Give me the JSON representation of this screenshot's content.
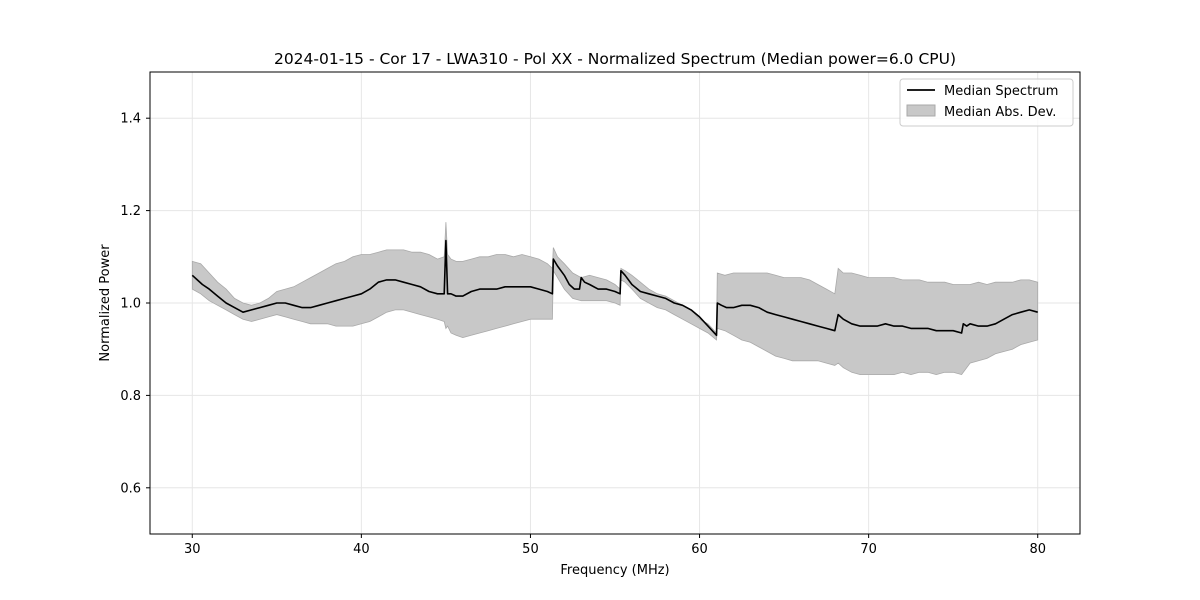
{
  "chart_data": {
    "type": "line",
    "title": "2024-01-15 - Cor 17 - LWA310 - Pol XX - Normalized Spectrum (Median power=6.0 CPU)",
    "xlabel": "Frequency (MHz)",
    "ylabel": "Normalized Power",
    "xlim": [
      27.5,
      82.5
    ],
    "ylim": [
      0.5,
      1.5
    ],
    "xticks": [
      30,
      40,
      50,
      60,
      70,
      80
    ],
    "yticks": [
      0.6,
      0.8,
      1.0,
      1.2,
      1.4
    ],
    "xtick_labels": [
      "30",
      "40",
      "50",
      "60",
      "70",
      "80"
    ],
    "ytick_labels": [
      "0.6",
      "0.8",
      "1.0",
      "1.2",
      "1.4"
    ],
    "grid": true,
    "legend_position": "top-right",
    "legend": [
      "Median Spectrum",
      "Median Abs. Dev."
    ],
    "colors": {
      "line": "#000000",
      "band_fill": "#c8c8c8",
      "band_edge": "#a9a9a9",
      "grid": "#e6e6e6"
    },
    "series": [
      {
        "name": "Median Spectrum",
        "x": [
          30.0,
          30.3,
          30.6,
          31.0,
          31.5,
          32.0,
          32.5,
          33.0,
          33.5,
          34.0,
          34.5,
          35.0,
          35.5,
          36.0,
          36.5,
          37.0,
          37.5,
          38.0,
          38.5,
          39.0,
          39.5,
          40.0,
          40.5,
          41.0,
          41.5,
          42.0,
          42.5,
          43.0,
          43.5,
          44.0,
          44.5,
          44.9,
          45.0,
          45.1,
          45.3,
          45.6,
          46.0,
          46.5,
          47.0,
          47.5,
          48.0,
          48.5,
          49.0,
          49.5,
          50.0,
          50.5,
          51.0,
          51.3,
          51.35,
          51.6,
          52.0,
          52.3,
          52.6,
          52.9,
          53.0,
          53.2,
          53.5,
          54.0,
          54.5,
          55.0,
          55.3,
          55.35,
          55.6,
          56.0,
          56.5,
          57.0,
          57.5,
          58.0,
          58.5,
          59.0,
          59.5,
          60.0,
          60.5,
          61.0,
          61.05,
          61.3,
          61.6,
          62.0,
          62.5,
          63.0,
          63.5,
          64.0,
          64.5,
          65.0,
          65.5,
          66.0,
          66.5,
          67.0,
          67.5,
          68.0,
          68.2,
          68.5,
          69.0,
          69.5,
          70.0,
          70.5,
          71.0,
          71.5,
          72.0,
          72.5,
          73.0,
          73.5,
          74.0,
          74.5,
          75.0,
          75.5,
          75.6,
          75.8,
          76.0,
          76.5,
          77.0,
          77.5,
          78.0,
          78.5,
          79.0,
          79.5,
          80.0
        ],
        "values": [
          1.06,
          1.05,
          1.04,
          1.03,
          1.015,
          1.0,
          0.99,
          0.98,
          0.985,
          0.99,
          0.995,
          1.0,
          1.0,
          0.995,
          0.99,
          0.99,
          0.995,
          1.0,
          1.005,
          1.01,
          1.015,
          1.02,
          1.03,
          1.045,
          1.05,
          1.05,
          1.045,
          1.04,
          1.035,
          1.025,
          1.02,
          1.02,
          1.135,
          1.02,
          1.02,
          1.015,
          1.015,
          1.025,
          1.03,
          1.03,
          1.03,
          1.035,
          1.035,
          1.035,
          1.035,
          1.03,
          1.025,
          1.02,
          1.095,
          1.08,
          1.06,
          1.04,
          1.03,
          1.03,
          1.055,
          1.045,
          1.04,
          1.03,
          1.03,
          1.025,
          1.02,
          1.07,
          1.06,
          1.04,
          1.025,
          1.02,
          1.015,
          1.01,
          1.0,
          0.995,
          0.985,
          0.97,
          0.95,
          0.93,
          1.0,
          0.995,
          0.99,
          0.99,
          0.995,
          0.995,
          0.99,
          0.98,
          0.975,
          0.97,
          0.965,
          0.96,
          0.955,
          0.95,
          0.945,
          0.94,
          0.975,
          0.965,
          0.955,
          0.95,
          0.95,
          0.95,
          0.955,
          0.95,
          0.95,
          0.945,
          0.945,
          0.945,
          0.94,
          0.94,
          0.94,
          0.935,
          0.955,
          0.95,
          0.955,
          0.95,
          0.95,
          0.955,
          0.965,
          0.975,
          0.98,
          0.985,
          0.98
        ]
      },
      {
        "name": "Median Abs. Dev.",
        "x": [
          30.0,
          30.5,
          31.0,
          31.5,
          32.0,
          32.5,
          33.0,
          33.5,
          34.0,
          34.5,
          35.0,
          35.5,
          36.0,
          36.5,
          37.0,
          37.5,
          38.0,
          38.5,
          39.0,
          39.5,
          40.0,
          40.5,
          41.0,
          41.5,
          42.0,
          42.5,
          43.0,
          43.5,
          44.0,
          44.5,
          44.9,
          45.0,
          45.1,
          45.3,
          45.6,
          46.0,
          46.5,
          47.0,
          47.5,
          48.0,
          48.5,
          49.0,
          49.5,
          50.0,
          50.5,
          51.0,
          51.3,
          51.35,
          51.6,
          52.0,
          52.5,
          53.0,
          53.5,
          54.0,
          54.5,
          55.0,
          55.3,
          55.35,
          55.6,
          56.0,
          56.5,
          57.0,
          57.5,
          58.0,
          58.5,
          59.0,
          59.5,
          60.0,
          60.5,
          61.0,
          61.05,
          61.5,
          62.0,
          62.5,
          63.0,
          63.5,
          64.0,
          64.5,
          65.0,
          65.5,
          66.0,
          66.5,
          67.0,
          67.5,
          68.0,
          68.2,
          68.5,
          69.0,
          69.5,
          70.0,
          70.5,
          71.0,
          71.5,
          72.0,
          72.5,
          73.0,
          73.5,
          74.0,
          74.5,
          75.0,
          75.5,
          76.0,
          76.5,
          77.0,
          77.5,
          78.0,
          78.5,
          79.0,
          79.5,
          80.0
        ],
        "upper": [
          1.09,
          1.085,
          1.065,
          1.045,
          1.03,
          1.01,
          1.0,
          0.995,
          1.0,
          1.01,
          1.025,
          1.03,
          1.035,
          1.045,
          1.055,
          1.065,
          1.075,
          1.085,
          1.09,
          1.1,
          1.105,
          1.105,
          1.11,
          1.115,
          1.115,
          1.115,
          1.11,
          1.11,
          1.105,
          1.095,
          1.1,
          1.175,
          1.105,
          1.095,
          1.09,
          1.09,
          1.095,
          1.1,
          1.1,
          1.105,
          1.105,
          1.1,
          1.105,
          1.1,
          1.095,
          1.085,
          1.075,
          1.12,
          1.1,
          1.085,
          1.065,
          1.055,
          1.06,
          1.055,
          1.05,
          1.04,
          1.03,
          1.075,
          1.07,
          1.06,
          1.045,
          1.03,
          1.02,
          1.015,
          1.005,
          0.995,
          0.985,
          0.965,
          0.955,
          0.935,
          1.065,
          1.06,
          1.065,
          1.065,
          1.065,
          1.065,
          1.065,
          1.06,
          1.055,
          1.055,
          1.055,
          1.05,
          1.04,
          1.03,
          1.02,
          1.075,
          1.065,
          1.065,
          1.06,
          1.055,
          1.055,
          1.055,
          1.055,
          1.05,
          1.05,
          1.05,
          1.045,
          1.045,
          1.045,
          1.04,
          1.04,
          1.04,
          1.045,
          1.04,
          1.045,
          1.045,
          1.045,
          1.05,
          1.05,
          1.045
        ],
        "lower": [
          1.03,
          1.02,
          1.005,
          0.995,
          0.985,
          0.975,
          0.965,
          0.96,
          0.965,
          0.97,
          0.975,
          0.97,
          0.965,
          0.96,
          0.955,
          0.955,
          0.955,
          0.95,
          0.95,
          0.95,
          0.955,
          0.96,
          0.97,
          0.98,
          0.985,
          0.985,
          0.98,
          0.975,
          0.97,
          0.965,
          0.96,
          0.945,
          0.95,
          0.935,
          0.93,
          0.925,
          0.93,
          0.935,
          0.94,
          0.945,
          0.95,
          0.955,
          0.96,
          0.965,
          0.965,
          0.965,
          0.965,
          1.07,
          1.055,
          1.03,
          1.01,
          1.005,
          1.005,
          1.005,
          1.005,
          1.0,
          0.995,
          1.05,
          1.045,
          1.03,
          1.01,
          1.0,
          0.99,
          0.985,
          0.975,
          0.965,
          0.955,
          0.945,
          0.935,
          0.92,
          0.945,
          0.94,
          0.93,
          0.92,
          0.915,
          0.905,
          0.895,
          0.885,
          0.88,
          0.875,
          0.875,
          0.875,
          0.875,
          0.87,
          0.865,
          0.87,
          0.86,
          0.85,
          0.845,
          0.845,
          0.845,
          0.845,
          0.845,
          0.85,
          0.845,
          0.85,
          0.85,
          0.845,
          0.85,
          0.85,
          0.845,
          0.87,
          0.875,
          0.88,
          0.89,
          0.895,
          0.9,
          0.91,
          0.915,
          0.92
        ]
      }
    ]
  }
}
